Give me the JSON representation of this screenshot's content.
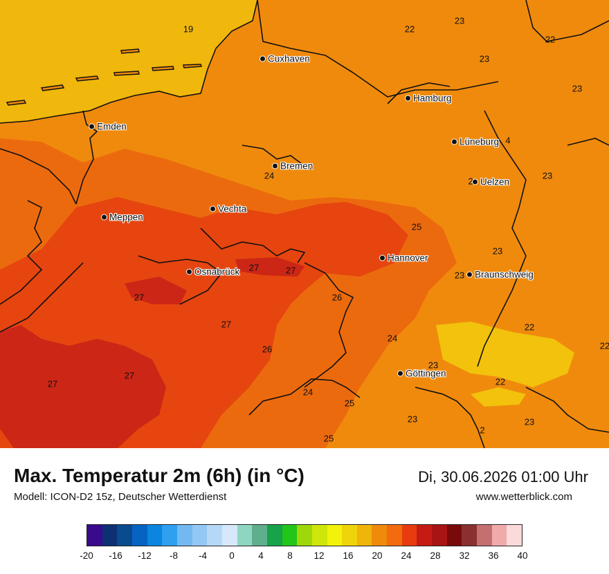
{
  "title": "Max. Temperatur 2m (6h) (in °C)",
  "subtitle": "Modell: ICON-D2 15z, Deutscher Wetterdienst",
  "datetime": "Di, 30.06.2026 01:00 Uhr",
  "website": "www.wetterblick.com",
  "legend": {
    "tick_labels": [
      "-20",
      "-16",
      "-12",
      "-8",
      "-4",
      "0",
      "4",
      "8",
      "12",
      "16",
      "20",
      "24",
      "28",
      "32",
      "36",
      "40"
    ],
    "colors": [
      "#3a0a8c",
      "#0d2f73",
      "#0a4a8f",
      "#0663c2",
      "#0a85e0",
      "#2ea0f0",
      "#72b9f2",
      "#93c8f5",
      "#b6d8f7",
      "#d6e8fa",
      "#8fd6c1",
      "#5fae8c",
      "#16a34a",
      "#22c51a",
      "#9ed80b",
      "#cfe60a",
      "#f2f20a",
      "#f0d40a",
      "#f0b40a",
      "#f08a0c",
      "#f26b0e",
      "#e83c0f",
      "#c41c14",
      "#a81414",
      "#7a0a0a",
      "#8a3030",
      "#c47070",
      "#f0aaaa",
      "#fcdada"
    ]
  },
  "cities": [
    {
      "name": "Cuxhaven"
    },
    {
      "name": "Hamburg"
    },
    {
      "name": "Emden"
    },
    {
      "name": "Lüneburg"
    },
    {
      "name": "Bremen"
    },
    {
      "name": "Uelzen"
    },
    {
      "name": "Vechta"
    },
    {
      "name": "Meppen"
    },
    {
      "name": "Hannover"
    },
    {
      "name": "Osnabrück"
    },
    {
      "name": "Braunschweig"
    },
    {
      "name": "Göttingen"
    }
  ],
  "values": [
    "19",
    "22",
    "23",
    "22",
    "23",
    "23",
    "23",
    "24",
    "23",
    "25",
    "23",
    "27",
    "27",
    "2",
    "27",
    "26",
    "27",
    "24",
    "26",
    "22",
    "22",
    "27",
    "27",
    "23",
    "24",
    "25",
    "22",
    "23",
    "23",
    "25",
    "4",
    "2"
  ],
  "colors": {
    "sea": "#f0b70c",
    "land_20": "#f08a0c",
    "land_24": "#ec6a0e",
    "land_26": "#e6450f",
    "land_28": "#cc2616",
    "cool_pocket": "#f2c20c"
  }
}
